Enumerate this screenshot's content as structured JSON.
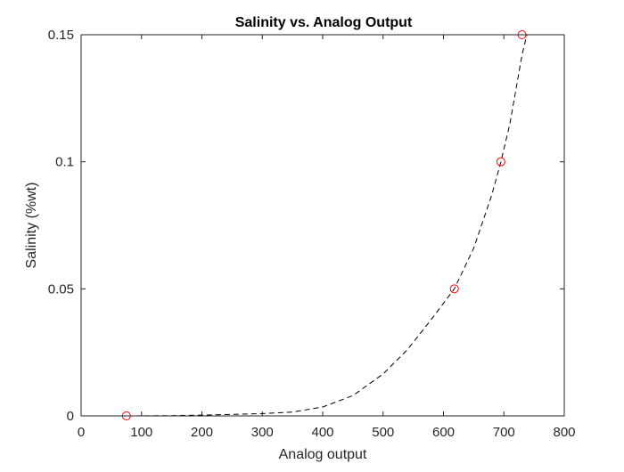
{
  "chart_data": {
    "type": "scatter",
    "title": "Salinity vs. Analog Output",
    "xlabel": "Analog output",
    "ylabel": "Salinity (%wt)",
    "xlim": [
      0,
      800
    ],
    "ylim": [
      0,
      0.15
    ],
    "xticks": [
      0,
      100,
      200,
      300,
      400,
      500,
      600,
      700,
      800
    ],
    "xtick_labels": [
      "0",
      "100",
      "200",
      "300",
      "400",
      "500",
      "600",
      "700",
      "800"
    ],
    "yticks": [
      0,
      0.05,
      0.1,
      0.15
    ],
    "ytick_labels": [
      "0",
      "0.05",
      "0.1",
      "0.15"
    ],
    "grid": false,
    "legend": "none",
    "series": [
      {
        "kind": "markers",
        "marker": "circle-open",
        "color": "#ff0000",
        "x": [
          75,
          618,
          695,
          730
        ],
        "y": [
          0,
          0.05,
          0.1,
          0.15
        ]
      },
      {
        "kind": "line",
        "style": "dashed",
        "color": "#000000",
        "x": [
          75,
          150,
          200,
          250,
          300,
          350,
          400,
          450,
          500,
          540,
          580,
          618,
          650,
          680,
          695,
          710,
          730,
          738
        ],
        "y": [
          0.0,
          0.0001,
          0.0003,
          0.0006,
          0.0009,
          0.0015,
          0.0035,
          0.008,
          0.0165,
          0.026,
          0.038,
          0.05,
          0.066,
          0.087,
          0.1,
          0.115,
          0.142,
          0.15
        ]
      }
    ]
  }
}
